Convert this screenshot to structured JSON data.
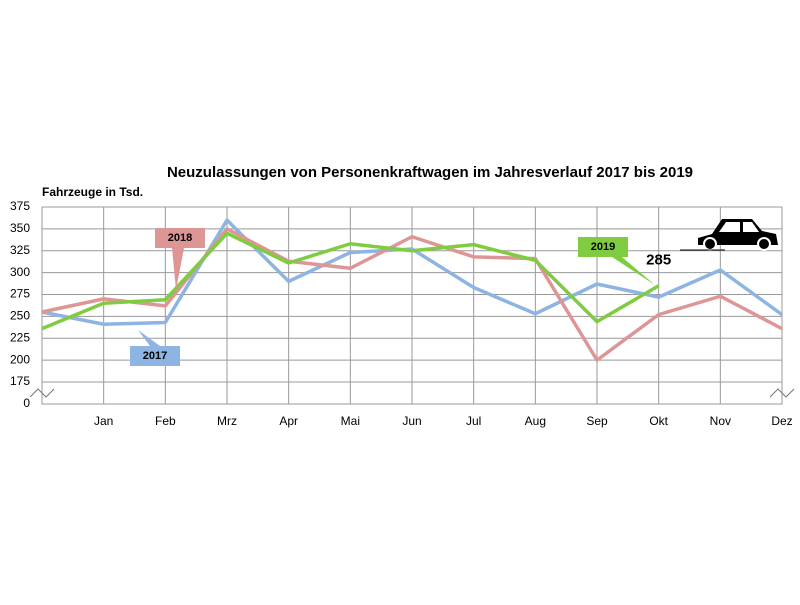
{
  "chart_data": {
    "type": "line",
    "title": "Neuzulassungen von Personenkraftwagen im Jahresverlauf 2017 bis 2019",
    "y_label": "Fahrzeuge in Tsd.",
    "categories": [
      null,
      "Jan",
      "Feb",
      "Mrz",
      "Apr",
      "Mai",
      "Jun",
      "Jul",
      "Aug",
      "Sep",
      "Okt",
      "Nov",
      "Dez"
    ],
    "series": [
      {
        "name": "2017",
        "color": "#8db4e2",
        "values": [
          255,
          241,
          243,
          360,
          290,
          323,
          327,
          283,
          253,
          287,
          272,
          303,
          252
        ]
      },
      {
        "name": "2018",
        "color": "#dd9595",
        "values": [
          255,
          270,
          262,
          350,
          313,
          305,
          341,
          318,
          316,
          200,
          252,
          273,
          236
        ]
      },
      {
        "name": "2019",
        "color": "#80cc40",
        "values": [
          236,
          265,
          269,
          345,
          311,
          333,
          325,
          332,
          314,
          244,
          285,
          null,
          null
        ],
        "value_labels": [
          null,
          null,
          null,
          null,
          null,
          null,
          null,
          null,
          null,
          null,
          "285",
          null,
          null
        ]
      }
    ],
    "ylim": [
      0,
      375
    ],
    "y_axis_break": [
      0,
      175
    ],
    "yticks": [
      0,
      175,
      200,
      225,
      250,
      275,
      300,
      325,
      350,
      375
    ],
    "grid": true
  }
}
